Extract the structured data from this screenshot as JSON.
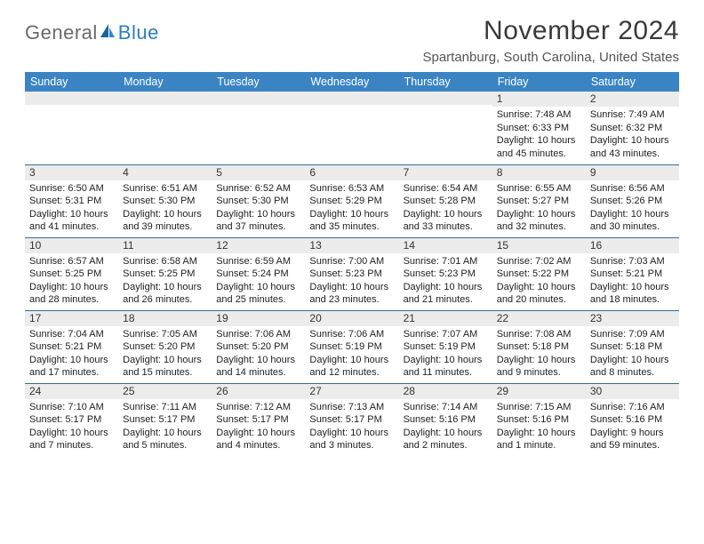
{
  "logo": {
    "general": "General",
    "blue": "Blue"
  },
  "header": {
    "title": "November 2024",
    "location": "Spartanburg, South Carolina, United States"
  },
  "colors": {
    "header_bg": "#3b84c4",
    "header_text": "#ffffff",
    "row_border": "#3b6a94",
    "daynum_bg": "#ececec",
    "logo_gray": "#6a6a6a",
    "logo_blue": "#2a7dc0"
  },
  "daysOfWeek": [
    "Sunday",
    "Monday",
    "Tuesday",
    "Wednesday",
    "Thursday",
    "Friday",
    "Saturday"
  ],
  "weeks": [
    [
      {
        "n": "",
        "sunrise": "",
        "sunset": "",
        "daylight": ""
      },
      {
        "n": "",
        "sunrise": "",
        "sunset": "",
        "daylight": ""
      },
      {
        "n": "",
        "sunrise": "",
        "sunset": "",
        "daylight": ""
      },
      {
        "n": "",
        "sunrise": "",
        "sunset": "",
        "daylight": ""
      },
      {
        "n": "",
        "sunrise": "",
        "sunset": "",
        "daylight": ""
      },
      {
        "n": "1",
        "sunrise": "Sunrise: 7:48 AM",
        "sunset": "Sunset: 6:33 PM",
        "daylight": "Daylight: 10 hours and 45 minutes."
      },
      {
        "n": "2",
        "sunrise": "Sunrise: 7:49 AM",
        "sunset": "Sunset: 6:32 PM",
        "daylight": "Daylight: 10 hours and 43 minutes."
      }
    ],
    [
      {
        "n": "3",
        "sunrise": "Sunrise: 6:50 AM",
        "sunset": "Sunset: 5:31 PM",
        "daylight": "Daylight: 10 hours and 41 minutes."
      },
      {
        "n": "4",
        "sunrise": "Sunrise: 6:51 AM",
        "sunset": "Sunset: 5:30 PM",
        "daylight": "Daylight: 10 hours and 39 minutes."
      },
      {
        "n": "5",
        "sunrise": "Sunrise: 6:52 AM",
        "sunset": "Sunset: 5:30 PM",
        "daylight": "Daylight: 10 hours and 37 minutes."
      },
      {
        "n": "6",
        "sunrise": "Sunrise: 6:53 AM",
        "sunset": "Sunset: 5:29 PM",
        "daylight": "Daylight: 10 hours and 35 minutes."
      },
      {
        "n": "7",
        "sunrise": "Sunrise: 6:54 AM",
        "sunset": "Sunset: 5:28 PM",
        "daylight": "Daylight: 10 hours and 33 minutes."
      },
      {
        "n": "8",
        "sunrise": "Sunrise: 6:55 AM",
        "sunset": "Sunset: 5:27 PM",
        "daylight": "Daylight: 10 hours and 32 minutes."
      },
      {
        "n": "9",
        "sunrise": "Sunrise: 6:56 AM",
        "sunset": "Sunset: 5:26 PM",
        "daylight": "Daylight: 10 hours and 30 minutes."
      }
    ],
    [
      {
        "n": "10",
        "sunrise": "Sunrise: 6:57 AM",
        "sunset": "Sunset: 5:25 PM",
        "daylight": "Daylight: 10 hours and 28 minutes."
      },
      {
        "n": "11",
        "sunrise": "Sunrise: 6:58 AM",
        "sunset": "Sunset: 5:25 PM",
        "daylight": "Daylight: 10 hours and 26 minutes."
      },
      {
        "n": "12",
        "sunrise": "Sunrise: 6:59 AM",
        "sunset": "Sunset: 5:24 PM",
        "daylight": "Daylight: 10 hours and 25 minutes."
      },
      {
        "n": "13",
        "sunrise": "Sunrise: 7:00 AM",
        "sunset": "Sunset: 5:23 PM",
        "daylight": "Daylight: 10 hours and 23 minutes."
      },
      {
        "n": "14",
        "sunrise": "Sunrise: 7:01 AM",
        "sunset": "Sunset: 5:23 PM",
        "daylight": "Daylight: 10 hours and 21 minutes."
      },
      {
        "n": "15",
        "sunrise": "Sunrise: 7:02 AM",
        "sunset": "Sunset: 5:22 PM",
        "daylight": "Daylight: 10 hours and 20 minutes."
      },
      {
        "n": "16",
        "sunrise": "Sunrise: 7:03 AM",
        "sunset": "Sunset: 5:21 PM",
        "daylight": "Daylight: 10 hours and 18 minutes."
      }
    ],
    [
      {
        "n": "17",
        "sunrise": "Sunrise: 7:04 AM",
        "sunset": "Sunset: 5:21 PM",
        "daylight": "Daylight: 10 hours and 17 minutes."
      },
      {
        "n": "18",
        "sunrise": "Sunrise: 7:05 AM",
        "sunset": "Sunset: 5:20 PM",
        "daylight": "Daylight: 10 hours and 15 minutes."
      },
      {
        "n": "19",
        "sunrise": "Sunrise: 7:06 AM",
        "sunset": "Sunset: 5:20 PM",
        "daylight": "Daylight: 10 hours and 14 minutes."
      },
      {
        "n": "20",
        "sunrise": "Sunrise: 7:06 AM",
        "sunset": "Sunset: 5:19 PM",
        "daylight": "Daylight: 10 hours and 12 minutes."
      },
      {
        "n": "21",
        "sunrise": "Sunrise: 7:07 AM",
        "sunset": "Sunset: 5:19 PM",
        "daylight": "Daylight: 10 hours and 11 minutes."
      },
      {
        "n": "22",
        "sunrise": "Sunrise: 7:08 AM",
        "sunset": "Sunset: 5:18 PM",
        "daylight": "Daylight: 10 hours and 9 minutes."
      },
      {
        "n": "23",
        "sunrise": "Sunrise: 7:09 AM",
        "sunset": "Sunset: 5:18 PM",
        "daylight": "Daylight: 10 hours and 8 minutes."
      }
    ],
    [
      {
        "n": "24",
        "sunrise": "Sunrise: 7:10 AM",
        "sunset": "Sunset: 5:17 PM",
        "daylight": "Daylight: 10 hours and 7 minutes."
      },
      {
        "n": "25",
        "sunrise": "Sunrise: 7:11 AM",
        "sunset": "Sunset: 5:17 PM",
        "daylight": "Daylight: 10 hours and 5 minutes."
      },
      {
        "n": "26",
        "sunrise": "Sunrise: 7:12 AM",
        "sunset": "Sunset: 5:17 PM",
        "daylight": "Daylight: 10 hours and 4 minutes."
      },
      {
        "n": "27",
        "sunrise": "Sunrise: 7:13 AM",
        "sunset": "Sunset: 5:17 PM",
        "daylight": "Daylight: 10 hours and 3 minutes."
      },
      {
        "n": "28",
        "sunrise": "Sunrise: 7:14 AM",
        "sunset": "Sunset: 5:16 PM",
        "daylight": "Daylight: 10 hours and 2 minutes."
      },
      {
        "n": "29",
        "sunrise": "Sunrise: 7:15 AM",
        "sunset": "Sunset: 5:16 PM",
        "daylight": "Daylight: 10 hours and 1 minute."
      },
      {
        "n": "30",
        "sunrise": "Sunrise: 7:16 AM",
        "sunset": "Sunset: 5:16 PM",
        "daylight": "Daylight: 9 hours and 59 minutes."
      }
    ]
  ]
}
